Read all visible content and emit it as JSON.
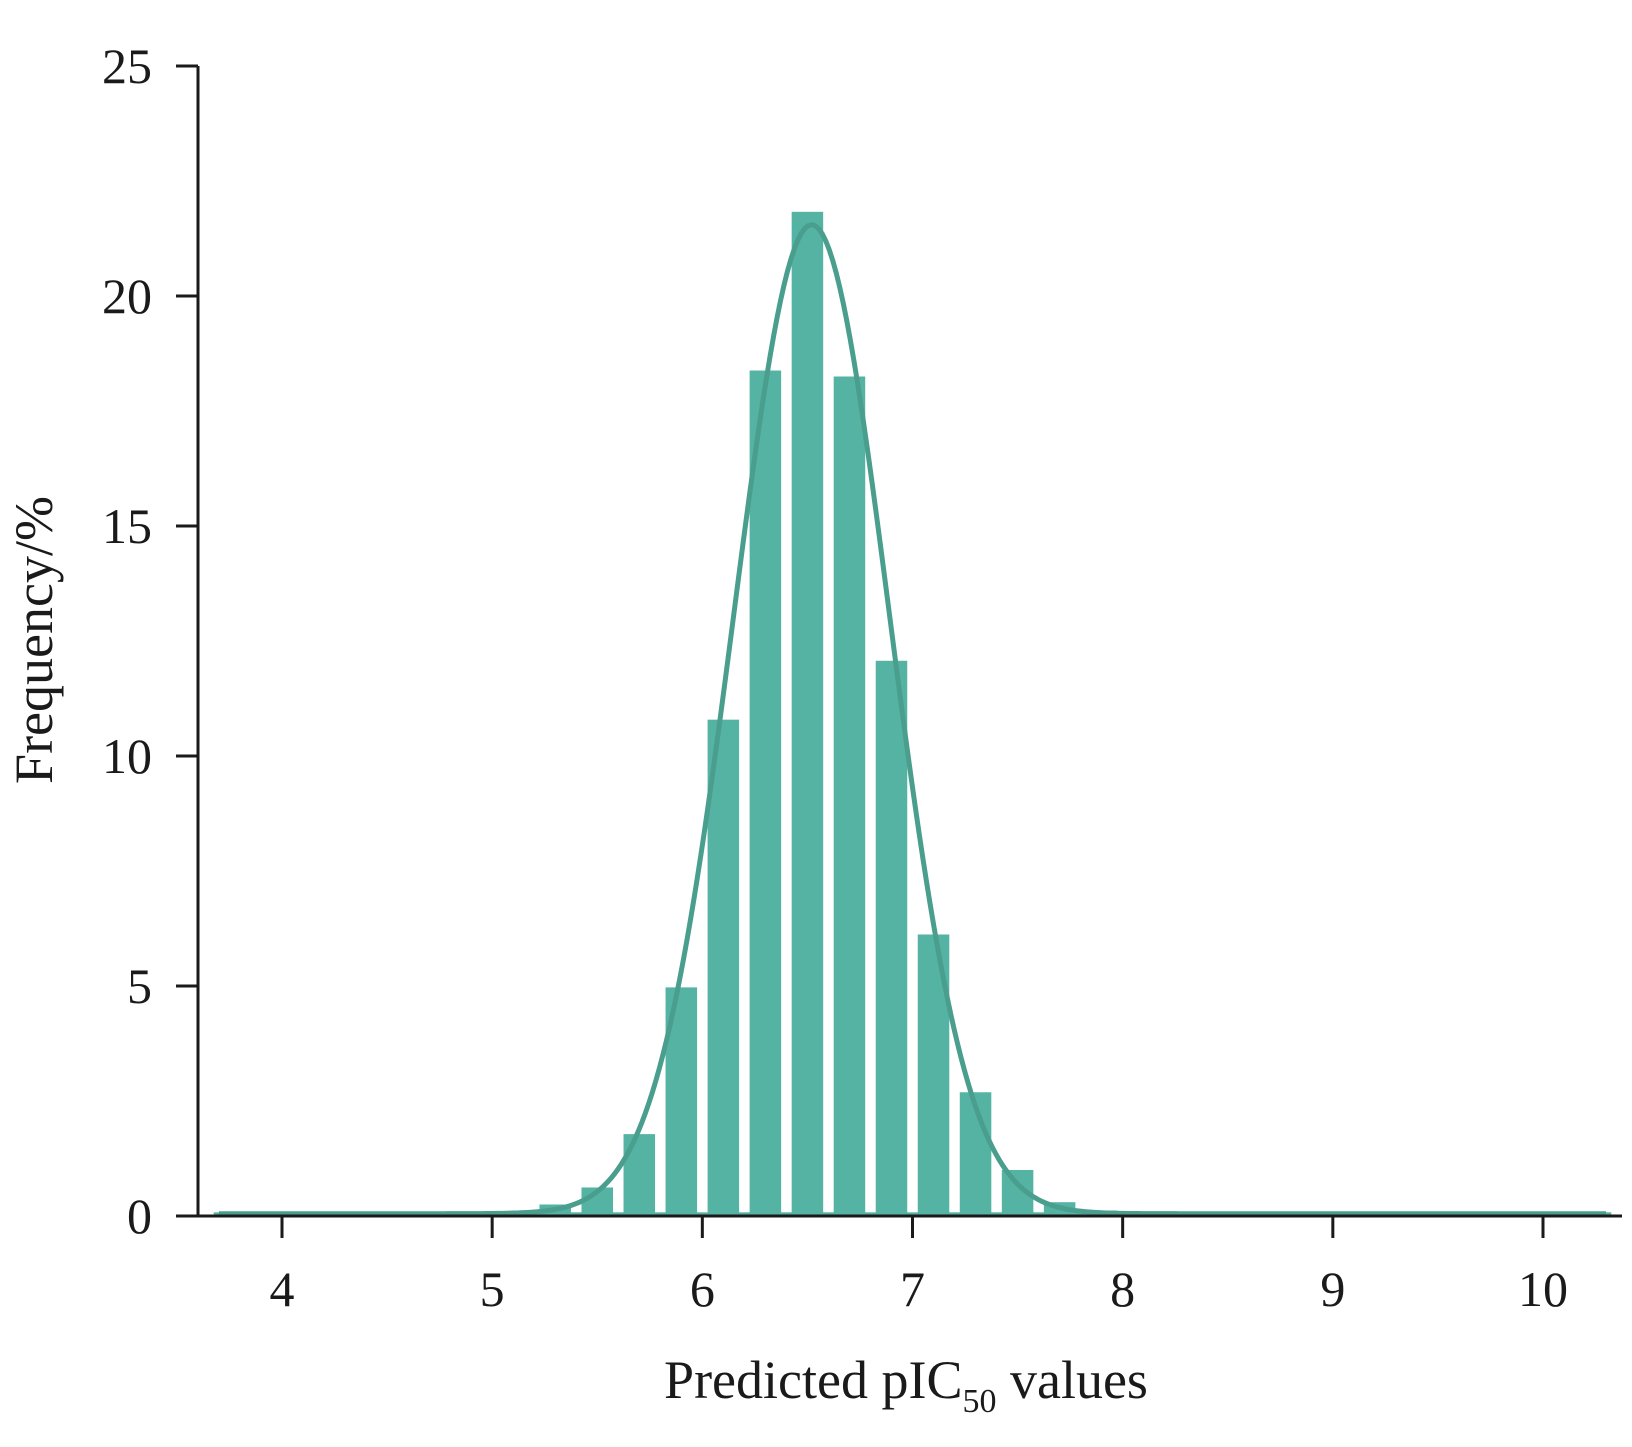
{
  "chart_data": {
    "type": "bar",
    "xlabel": {
      "main": "Predicted pIC",
      "subscript": "50",
      "suffix": " values"
    },
    "ylabel": "Frequency/%",
    "xlim": [
      3.5,
      10.4
    ],
    "ylim": [
      0,
      25
    ],
    "xticks": [
      "4",
      "5",
      "6",
      "7",
      "8",
      "9",
      "10"
    ],
    "yticks": [
      "0",
      "5",
      "10",
      "15",
      "20",
      "25"
    ],
    "bar_width": 0.15,
    "bars": {
      "x": [
        3.75,
        3.95,
        4.15,
        4.35,
        4.55,
        4.75,
        4.95,
        5.15,
        5.3,
        5.5,
        5.7,
        5.9,
        6.1,
        6.3,
        6.5,
        6.7,
        6.9,
        7.1,
        7.3,
        7.5,
        7.7,
        7.9,
        8.1,
        8.3,
        8.5,
        8.7,
        8.9,
        9.1,
        9.3,
        9.5,
        9.7,
        9.9,
        10.1,
        10.25
      ],
      "values": [
        0.08,
        0.08,
        0.08,
        0.08,
        0.08,
        0.08,
        0.08,
        0.1,
        0.25,
        0.62,
        1.78,
        4.97,
        10.79,
        18.38,
        21.83,
        18.25,
        12.07,
        6.12,
        2.69,
        1.0,
        0.3,
        0.12,
        0.08,
        0.08,
        0.08,
        0.08,
        0.08,
        0.08,
        0.08,
        0.08,
        0.08,
        0.08,
        0.08,
        0.08
      ]
    },
    "fit_curve": {
      "type": "normal",
      "mean": 6.52,
      "sd": 0.37,
      "peak": 21.5,
      "xrange": [
        3.7,
        10.3
      ]
    },
    "colors": {
      "bar": "#55b3a3",
      "curve": "#4a9e8e",
      "axis": "#1a1a1a"
    },
    "grid": false,
    "legend": "none"
  }
}
